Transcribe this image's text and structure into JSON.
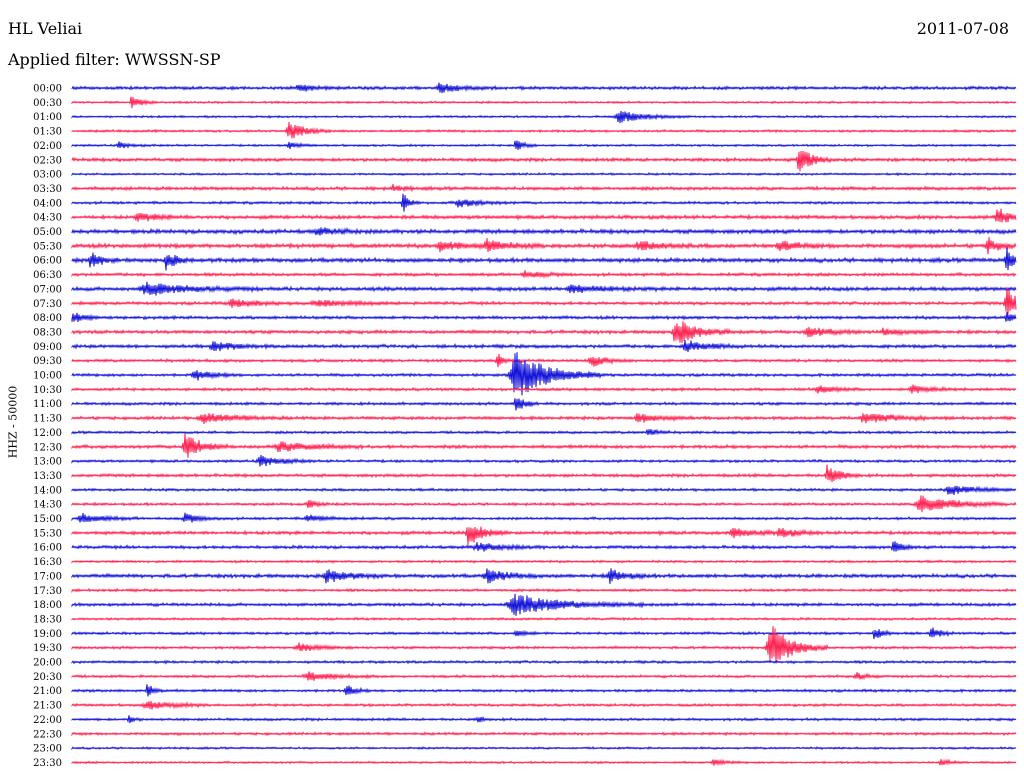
{
  "header": {
    "station": "HL Veliai",
    "date": "2011-07-08",
    "filter": "Applied filter: WWSSN-SP"
  },
  "chart_data": {
    "type": "helicorder",
    "title": "HL Veliai",
    "date": "2011-07-08",
    "filter": "WWSSN-SP",
    "ylabel": "HHZ - 50000",
    "row_colors": [
      "#1010d8",
      "#ff2050"
    ],
    "rows": [
      {
        "time": "00:00",
        "noise": 1.2,
        "events": [
          {
            "x": 0.24,
            "amp": 4,
            "w": 0.015
          },
          {
            "x": 0.39,
            "amp": 5,
            "w": 0.02
          }
        ]
      },
      {
        "time": "00:30",
        "noise": 0.8,
        "events": [
          {
            "x": 0.063,
            "amp": 8,
            "w": 0.008
          }
        ]
      },
      {
        "time": "01:00",
        "noise": 0.8,
        "events": [
          {
            "x": 0.58,
            "amp": 6,
            "w": 0.025
          }
        ]
      },
      {
        "time": "01:30",
        "noise": 0.9,
        "events": [
          {
            "x": 0.23,
            "amp": 9,
            "w": 0.015
          }
        ]
      },
      {
        "time": "02:00",
        "noise": 0.8,
        "events": [
          {
            "x": 0.05,
            "amp": 3,
            "w": 0.01
          },
          {
            "x": 0.23,
            "amp": 3,
            "w": 0.01
          },
          {
            "x": 0.47,
            "amp": 6,
            "w": 0.008
          }
        ]
      },
      {
        "time": "02:30",
        "noise": 1.3,
        "events": [
          {
            "x": 0.77,
            "amp": 14,
            "w": 0.012
          }
        ]
      },
      {
        "time": "03:00",
        "noise": 0.8,
        "events": []
      },
      {
        "time": "03:30",
        "noise": 1.3,
        "events": [
          {
            "x": 0.34,
            "amp": 3,
            "w": 0.01
          }
        ]
      },
      {
        "time": "04:00",
        "noise": 1.0,
        "events": [
          {
            "x": 0.35,
            "amp": 11,
            "w": 0.006
          },
          {
            "x": 0.41,
            "amp": 4,
            "w": 0.02
          }
        ]
      },
      {
        "time": "04:30",
        "noise": 1.4,
        "events": [
          {
            "x": 0.07,
            "amp": 4,
            "w": 0.02
          },
          {
            "x": 0.98,
            "amp": 10,
            "w": 0.012
          }
        ]
      },
      {
        "time": "05:00",
        "noise": 1.6,
        "events": [
          {
            "x": 0.26,
            "amp": 3,
            "w": 0.02
          }
        ]
      },
      {
        "time": "05:30",
        "noise": 1.6,
        "events": [
          {
            "x": 0.39,
            "amp": 5,
            "w": 0.02
          },
          {
            "x": 0.44,
            "amp": 6,
            "w": 0.02
          },
          {
            "x": 0.6,
            "amp": 5,
            "w": 0.02
          },
          {
            "x": 0.75,
            "amp": 4,
            "w": 0.02
          },
          {
            "x": 0.97,
            "amp": 8,
            "w": 0.01
          }
        ]
      },
      {
        "time": "06:00",
        "noise": 1.6,
        "events": [
          {
            "x": 0.02,
            "amp": 8,
            "w": 0.01
          },
          {
            "x": 0.1,
            "amp": 9,
            "w": 0.01
          },
          {
            "x": 0.99,
            "amp": 12,
            "w": 0.008
          }
        ]
      },
      {
        "time": "06:30",
        "noise": 1.2,
        "events": [
          {
            "x": 0.48,
            "amp": 3,
            "w": 0.02
          }
        ]
      },
      {
        "time": "07:00",
        "noise": 1.5,
        "events": [
          {
            "x": 0.08,
            "amp": 6,
            "w": 0.04
          },
          {
            "x": 0.53,
            "amp": 4,
            "w": 0.03
          }
        ]
      },
      {
        "time": "07:30",
        "noise": 1.2,
        "events": [
          {
            "x": 0.17,
            "amp": 4,
            "w": 0.025
          },
          {
            "x": 0.26,
            "amp": 3,
            "w": 0.03
          },
          {
            "x": 0.99,
            "amp": 16,
            "w": 0.012
          }
        ]
      },
      {
        "time": "08:00",
        "noise": 1.2,
        "events": [
          {
            "x": 0.0,
            "amp": 6,
            "w": 0.01
          },
          {
            "x": 0.99,
            "amp": 6,
            "w": 0.008
          }
        ]
      },
      {
        "time": "08:30",
        "noise": 1.3,
        "events": [
          {
            "x": 0.64,
            "amp": 14,
            "w": 0.02
          },
          {
            "x": 0.78,
            "amp": 5,
            "w": 0.02
          },
          {
            "x": 0.86,
            "amp": 3,
            "w": 0.02
          }
        ]
      },
      {
        "time": "09:00",
        "noise": 1.3,
        "events": [
          {
            "x": 0.15,
            "amp": 5,
            "w": 0.02
          },
          {
            "x": 0.65,
            "amp": 6,
            "w": 0.02
          }
        ]
      },
      {
        "time": "09:30",
        "noise": 1.1,
        "events": [
          {
            "x": 0.45,
            "amp": 8,
            "w": 0.006
          },
          {
            "x": 0.55,
            "amp": 6,
            "w": 0.015
          }
        ]
      },
      {
        "time": "10:00",
        "noise": 1.1,
        "events": [
          {
            "x": 0.13,
            "amp": 6,
            "w": 0.015
          },
          {
            "x": 0.47,
            "amp": 26,
            "w": 0.03
          }
        ]
      },
      {
        "time": "10:30",
        "noise": 1.1,
        "events": [
          {
            "x": 0.79,
            "amp": 4,
            "w": 0.015
          },
          {
            "x": 0.89,
            "amp": 4,
            "w": 0.02
          }
        ]
      },
      {
        "time": "11:00",
        "noise": 1.1,
        "events": [
          {
            "x": 0.47,
            "amp": 10,
            "w": 0.008
          }
        ]
      },
      {
        "time": "11:30",
        "noise": 1.2,
        "events": [
          {
            "x": 0.14,
            "amp": 5,
            "w": 0.03
          },
          {
            "x": 0.6,
            "amp": 5,
            "w": 0.02
          },
          {
            "x": 0.84,
            "amp": 5,
            "w": 0.03
          }
        ]
      },
      {
        "time": "12:00",
        "noise": 1.0,
        "events": [
          {
            "x": 0.61,
            "amp": 5,
            "w": 0.008
          }
        ]
      },
      {
        "time": "12:30",
        "noise": 1.3,
        "events": [
          {
            "x": 0.12,
            "amp": 14,
            "w": 0.015
          },
          {
            "x": 0.22,
            "amp": 5,
            "w": 0.03
          }
        ]
      },
      {
        "time": "13:00",
        "noise": 1.0,
        "events": [
          {
            "x": 0.2,
            "amp": 5,
            "w": 0.02
          }
        ]
      },
      {
        "time": "13:30",
        "noise": 1.2,
        "events": [
          {
            "x": 0.8,
            "amp": 10,
            "w": 0.012
          }
        ]
      },
      {
        "time": "14:00",
        "noise": 1.0,
        "events": [
          {
            "x": 0.93,
            "amp": 5,
            "w": 0.025
          }
        ]
      },
      {
        "time": "14:30",
        "noise": 1.0,
        "events": [
          {
            "x": 0.25,
            "amp": 4,
            "w": 0.01
          },
          {
            "x": 0.9,
            "amp": 10,
            "w": 0.03
          }
        ]
      },
      {
        "time": "15:00",
        "noise": 1.0,
        "events": [
          {
            "x": 0.01,
            "amp": 5,
            "w": 0.02
          },
          {
            "x": 0.12,
            "amp": 5,
            "w": 0.015
          },
          {
            "x": 0.25,
            "amp": 3,
            "w": 0.02
          }
        ]
      },
      {
        "time": "15:30",
        "noise": 1.3,
        "events": [
          {
            "x": 0.42,
            "amp": 12,
            "w": 0.015
          },
          {
            "x": 0.7,
            "amp": 4,
            "w": 0.02
          },
          {
            "x": 0.75,
            "amp": 5,
            "w": 0.015
          }
        ]
      },
      {
        "time": "16:00",
        "noise": 1.2,
        "events": [
          {
            "x": 0.43,
            "amp": 4,
            "w": 0.025
          },
          {
            "x": 0.87,
            "amp": 7,
            "w": 0.008
          }
        ]
      },
      {
        "time": "16:30",
        "noise": 0.9,
        "events": []
      },
      {
        "time": "17:00",
        "noise": 1.4,
        "events": [
          {
            "x": 0.27,
            "amp": 7,
            "w": 0.02
          },
          {
            "x": 0.44,
            "amp": 7,
            "w": 0.02
          },
          {
            "x": 0.57,
            "amp": 7,
            "w": 0.015
          }
        ]
      },
      {
        "time": "17:30",
        "noise": 1.0,
        "events": []
      },
      {
        "time": "18:00",
        "noise": 1.2,
        "events": [
          {
            "x": 0.47,
            "amp": 10,
            "w": 0.045
          }
        ]
      },
      {
        "time": "18:30",
        "noise": 0.9,
        "events": []
      },
      {
        "time": "19:00",
        "noise": 1.0,
        "events": [
          {
            "x": 0.47,
            "amp": 3,
            "w": 0.01
          },
          {
            "x": 0.85,
            "amp": 7,
            "w": 0.008
          },
          {
            "x": 0.91,
            "amp": 7,
            "w": 0.008
          }
        ]
      },
      {
        "time": "19:30",
        "noise": 1.0,
        "events": [
          {
            "x": 0.24,
            "amp": 4,
            "w": 0.02
          },
          {
            "x": 0.74,
            "amp": 24,
            "w": 0.02
          }
        ]
      },
      {
        "time": "20:00",
        "noise": 1.0,
        "events": []
      },
      {
        "time": "20:30",
        "noise": 1.0,
        "events": [
          {
            "x": 0.25,
            "amp": 4,
            "w": 0.025
          },
          {
            "x": 0.83,
            "amp": 4,
            "w": 0.01
          }
        ]
      },
      {
        "time": "21:00",
        "noise": 1.0,
        "events": [
          {
            "x": 0.08,
            "amp": 9,
            "w": 0.006
          },
          {
            "x": 0.29,
            "amp": 7,
            "w": 0.008
          }
        ]
      },
      {
        "time": "21:30",
        "noise": 1.0,
        "events": [
          {
            "x": 0.08,
            "amp": 4,
            "w": 0.025
          }
        ]
      },
      {
        "time": "22:00",
        "noise": 1.0,
        "events": [
          {
            "x": 0.06,
            "amp": 4,
            "w": 0.005
          },
          {
            "x": 0.43,
            "amp": 3,
            "w": 0.005
          }
        ]
      },
      {
        "time": "22:30",
        "noise": 1.0,
        "events": []
      },
      {
        "time": "23:00",
        "noise": 0.8,
        "events": []
      },
      {
        "time": "23:30",
        "noise": 0.8,
        "events": [
          {
            "x": 0.68,
            "amp": 3,
            "w": 0.01
          },
          {
            "x": 0.92,
            "amp": 3,
            "w": 0.01
          }
        ]
      }
    ]
  }
}
